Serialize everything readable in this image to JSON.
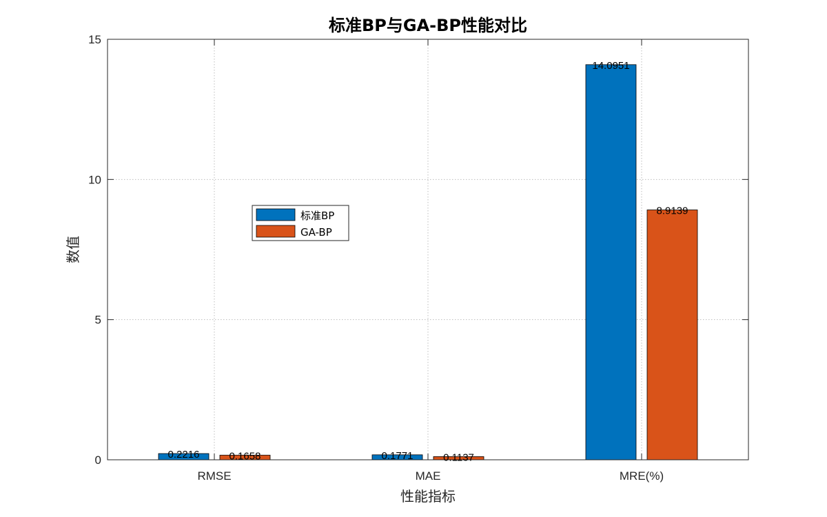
{
  "chart_data": {
    "type": "bar",
    "title": "标准BP与GA-BP性能对比",
    "xlabel": "性能指标",
    "ylabel": "数值",
    "categories": [
      "RMSE",
      "MAE",
      "MRE(%)"
    ],
    "series": [
      {
        "name": "标准BP",
        "values": [
          0.2216,
          0.1771,
          14.0951
        ],
        "labels": [
          "0.2216",
          "0.1771",
          "14.0951"
        ],
        "color": "#0072BD"
      },
      {
        "name": "GA-BP",
        "values": [
          0.1658,
          0.1137,
          8.9139
        ],
        "labels": [
          "0.1658",
          "0.1137",
          "8.9139"
        ],
        "color": "#D95319"
      }
    ],
    "ylim": [
      0,
      15
    ],
    "yticks": [
      0,
      5,
      10,
      15
    ],
    "ytick_labels": [
      "0",
      "5",
      "10",
      "15"
    ],
    "grid": true,
    "legend_position": "upper-left inside axes"
  }
}
